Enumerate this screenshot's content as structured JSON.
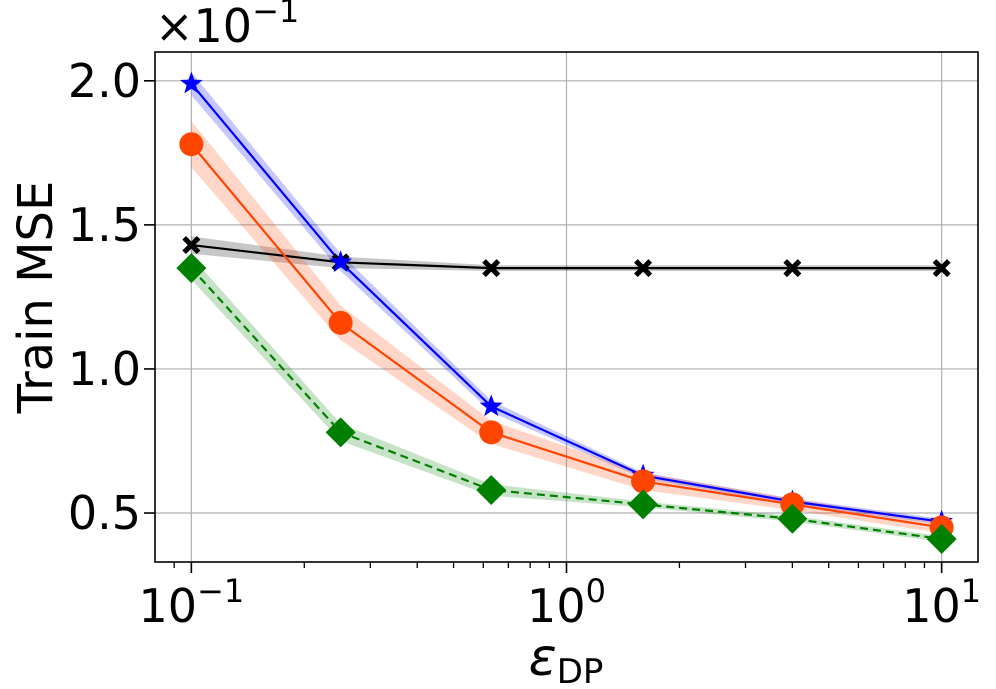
{
  "chart_data": {
    "type": "line",
    "ylabel": "Train MSE",
    "xlabel": {
      "main": "ε",
      "sub": "DP"
    },
    "y_offset_text": {
      "base": "×10",
      "exp": "−1"
    },
    "x_scale": "log",
    "xlim": [
      0.08,
      12.5
    ],
    "ylim": [
      0.33,
      2.1
    ],
    "grid": true,
    "x_ticks": [
      {
        "value": 0.1,
        "base": "10",
        "exp": "−1"
      },
      {
        "value": 1,
        "base": "10",
        "exp": "0"
      },
      {
        "value": 10,
        "base": "10",
        "exp": "1"
      }
    ],
    "y_ticks": [
      {
        "value": 0.5,
        "label": "0.5"
      },
      {
        "value": 1.0,
        "label": "1.0"
      },
      {
        "value": 1.5,
        "label": "1.5"
      },
      {
        "value": 2.0,
        "label": "2.0"
      }
    ],
    "x": [
      0.1,
      0.25,
      0.63,
      1.6,
      4.0,
      10.0
    ],
    "series": [
      {
        "values": [
          1.43,
          1.37,
          1.35,
          1.35,
          1.35,
          1.35
        ],
        "band": [
          0.03,
          0.02,
          0.01,
          0.01,
          0.01,
          0.01
        ],
        "color": "#000000",
        "marker": "x-icon",
        "dash": "solid"
      },
      {
        "values": [
          1.99,
          1.37,
          0.87,
          0.63,
          0.54,
          0.47
        ],
        "band": [
          0.04,
          0.03,
          0.02,
          0.01,
          0.01,
          0.01
        ],
        "color": "#0000ff",
        "marker": "star-icon",
        "dash": "solid"
      },
      {
        "values": [
          1.78,
          1.16,
          0.78,
          0.61,
          0.53,
          0.45
        ],
        "band": [
          0.08,
          0.06,
          0.04,
          0.03,
          0.02,
          0.02
        ],
        "color": "#ff4500",
        "marker": "circle-icon",
        "dash": "solid"
      },
      {
        "values": [
          1.35,
          0.78,
          0.58,
          0.53,
          0.48,
          0.41
        ],
        "band": [
          0.04,
          0.03,
          0.02,
          0.01,
          0.01,
          0.01
        ],
        "color": "#008000",
        "marker": "diamond-icon",
        "dash": "dashed"
      }
    ]
  }
}
